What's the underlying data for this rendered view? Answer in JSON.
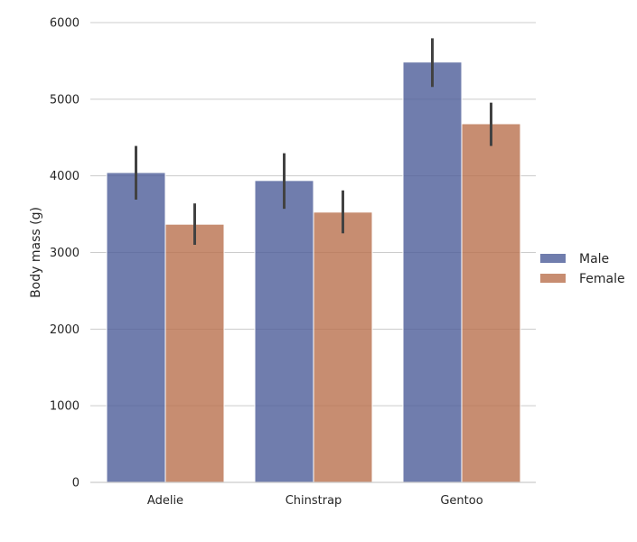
{
  "chart_data": {
    "type": "bar",
    "title": "",
    "xlabel": "",
    "ylabel": "Body mass (g)",
    "categories": [
      "Adelie",
      "Chinstrap",
      "Gentoo"
    ],
    "series": [
      {
        "name": "Male",
        "color": "#4c5c99",
        "values": [
          4043,
          3939,
          5485
        ],
        "error_low": [
          3690,
          3570,
          5160
        ],
        "error_high": [
          4390,
          4295,
          5795
        ]
      },
      {
        "name": "Female",
        "color": "#b9704d",
        "values": [
          3369,
          3527,
          4680
        ],
        "error_low": [
          3100,
          3250,
          4390
        ],
        "error_high": [
          3640,
          3810,
          4955
        ]
      }
    ],
    "ylim": [
      0,
      6000
    ],
    "yticks": [
      0,
      1000,
      2000,
      3000,
      4000,
      5000,
      6000
    ],
    "ytick_labels": [
      "0",
      "1000",
      "2000",
      "3000",
      "4000",
      "5000",
      "6000"
    ],
    "grid": true,
    "legend_position": "right",
    "bar_opacity": 0.8
  }
}
